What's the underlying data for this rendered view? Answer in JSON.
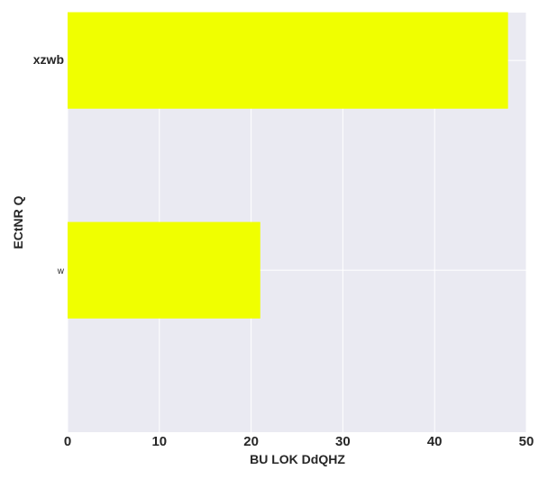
{
  "chart_data": {
    "type": "bar",
    "orientation": "horizontal",
    "categories": [
      "xzwb",
      "w"
    ],
    "values": [
      48,
      21
    ],
    "xlabel": "BU LOK DdQHZ",
    "ylabel": "ECtNR  Q",
    "xlim": [
      0,
      50
    ],
    "xticks": [
      "0",
      "10",
      "20",
      "30",
      "40",
      "50"
    ],
    "grid": true,
    "colors": {
      "bar": "#f0ff00",
      "plot_bg": "#eaeaf2",
      "grid": "#ffffff",
      "text": "#262626"
    }
  }
}
